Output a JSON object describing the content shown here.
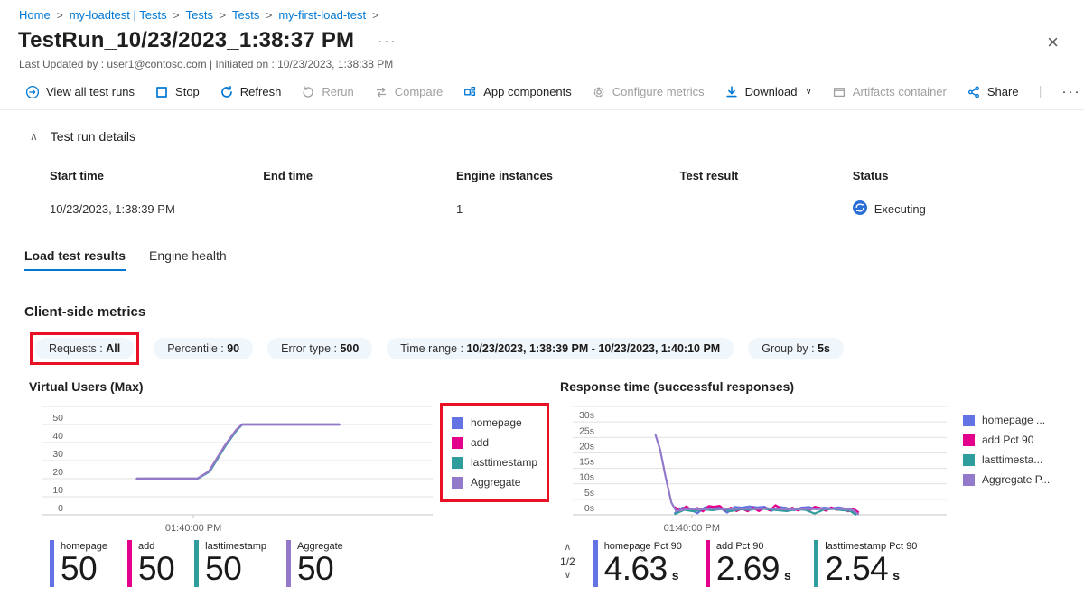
{
  "colors": {
    "accent": "#0078d4",
    "disabled": "#a19f9d",
    "highlight_red": "#e81123",
    "status_blue": "#2b6fd6",
    "series_blue": "#6373e3",
    "series_pink": "#e3008c",
    "series_teal": "#2e9d9b",
    "series_purple": "#9379c9"
  },
  "breadcrumb": {
    "separator": ">",
    "trailing_separator": true,
    "items": [
      {
        "label": "Home"
      },
      {
        "label": "my-loadtest | Tests"
      },
      {
        "label": "Tests"
      },
      {
        "label": "Tests"
      },
      {
        "label": "my-first-load-test"
      }
    ]
  },
  "header": {
    "title": "TestRun_10/23/2023_1:38:37 PM",
    "more": "···",
    "close": "×",
    "subtitle": "Last Updated by : user1@contoso.com | Initiated on : 10/23/2023, 1:38:38 PM"
  },
  "toolbar": {
    "items": [
      {
        "label": "View all test runs",
        "icon": "arrow-circle-right",
        "enabled": true
      },
      {
        "label": "Stop",
        "icon": "stop-square",
        "enabled": true
      },
      {
        "label": "Refresh",
        "icon": "refresh",
        "enabled": true
      },
      {
        "label": "Rerun",
        "icon": "rerun",
        "enabled": false
      },
      {
        "label": "Compare",
        "icon": "compare",
        "enabled": false
      },
      {
        "label": "App components",
        "icon": "app-components",
        "enabled": true
      },
      {
        "label": "Configure metrics",
        "icon": "gear",
        "enabled": false
      },
      {
        "label": "Download",
        "icon": "download",
        "enabled": true,
        "chevron": "∨"
      },
      {
        "label": "Artifacts container",
        "icon": "container",
        "enabled": false
      },
      {
        "label": "Share",
        "icon": "share",
        "enabled": true
      }
    ],
    "divider": "|",
    "more": "···"
  },
  "details": {
    "section_title": "Test run details",
    "collapse_chevron": "∧",
    "table": {
      "columns": [
        "Start time",
        "End time",
        "Engine instances",
        "Test result",
        "Status"
      ],
      "rows": [
        {
          "cells": [
            "10/23/2023, 1:38:39 PM",
            "",
            "1",
            "",
            "Executing"
          ],
          "status_icon": "sync"
        }
      ]
    }
  },
  "tabs": [
    {
      "label": "Load test results",
      "active": true
    },
    {
      "label": "Engine health",
      "active": false
    }
  ],
  "metrics": {
    "heading": "Client-side metrics",
    "filters": [
      {
        "label": "Requests",
        "value": "All",
        "highlighted": true
      },
      {
        "label": "Percentile",
        "value": "90",
        "highlighted": false
      },
      {
        "label": "Error type",
        "value": "500",
        "highlighted": false
      },
      {
        "label": "Time range",
        "value": "10/23/2023, 1:38:39 PM - 10/23/2023, 1:40:10 PM",
        "highlighted": false
      },
      {
        "label": "Group by",
        "value": "5s",
        "highlighted": false
      }
    ]
  },
  "chart_data": [
    {
      "type": "line",
      "title": "Virtual Users (Max)",
      "xlabel": "",
      "ylabel": "",
      "ylim": [
        0,
        50
      ],
      "yticks": [
        "50",
        "40",
        "30",
        "20",
        "10",
        "0"
      ],
      "xticks": [
        {
          "label": "01:40:00 PM",
          "pos": 0.39
        }
      ],
      "grid": true,
      "legend_position": "right",
      "legend_highlighted": true,
      "legend": [
        {
          "name": "homepage",
          "color": "#6373e3"
        },
        {
          "name": "add",
          "color": "#e3008c"
        },
        {
          "name": "lasttimestamp",
          "color": "#2e9d9b"
        },
        {
          "name": "Aggregate",
          "color": "#9379c9"
        }
      ],
      "series": [
        {
          "name": "homepage",
          "color": "#6373e3",
          "points": [
            [
              0.245,
              20
            ],
            [
              0.4,
              20
            ],
            [
              0.43,
              24
            ],
            [
              0.47,
              38
            ],
            [
              0.5,
              47
            ],
            [
              0.515,
              50
            ],
            [
              0.6,
              50
            ],
            [
              0.7,
              50
            ],
            [
              0.765,
              50
            ]
          ]
        },
        {
          "name": "add",
          "color": "#e3008c",
          "points": [
            [
              0.245,
              20
            ],
            [
              0.4,
              20
            ],
            [
              0.43,
              24
            ],
            [
              0.47,
              38
            ],
            [
              0.5,
              47
            ],
            [
              0.515,
              50
            ],
            [
              0.6,
              50
            ],
            [
              0.7,
              50
            ],
            [
              0.765,
              50
            ]
          ]
        },
        {
          "name": "lasttimestamp",
          "color": "#2e9d9b",
          "points": [
            [
              0.245,
              20
            ],
            [
              0.401,
              20
            ],
            [
              0.432,
              24
            ],
            [
              0.472,
              38
            ],
            [
              0.502,
              47
            ],
            [
              0.516,
              50
            ],
            [
              0.6,
              50
            ],
            [
              0.7,
              50
            ],
            [
              0.765,
              50
            ]
          ]
        },
        {
          "name": "Aggregate",
          "color": "#9379c9",
          "points": [
            [
              0.245,
              20
            ],
            [
              0.4,
              20
            ],
            [
              0.43,
              24
            ],
            [
              0.47,
              38
            ],
            [
              0.5,
              47
            ],
            [
              0.515,
              50
            ],
            [
              0.6,
              50
            ],
            [
              0.7,
              50
            ],
            [
              0.765,
              50
            ]
          ]
        }
      ]
    },
    {
      "type": "line",
      "title": "Response time (successful responses)",
      "xlabel": "",
      "ylabel": "",
      "ylim": [
        0,
        30
      ],
      "yticks": [
        "30s",
        "25s",
        "20s",
        "15s",
        "10s",
        "5s",
        "0s"
      ],
      "xticks": [
        {
          "label": "01:40:00 PM",
          "pos": 0.32
        }
      ],
      "grid": true,
      "legend_position": "right",
      "legend_highlighted": false,
      "legend": [
        {
          "name": "homepage ...",
          "color": "#6373e3"
        },
        {
          "name": "add Pct 90",
          "color": "#e3008c"
        },
        {
          "name": "lasttimesta...",
          "color": "#2e9d9b"
        },
        {
          "name": "Aggregate P...",
          "color": "#9379c9"
        }
      ],
      "series": [
        {
          "name": "homepage Pct 90",
          "color": "#6373e3",
          "points": [
            [
              0.275,
              0.6
            ],
            [
              0.295,
              2.3
            ],
            [
              0.315,
              1.9
            ],
            [
              0.335,
              0.5
            ],
            [
              0.355,
              2.4
            ],
            [
              0.375,
              2.6
            ],
            [
              0.395,
              2.4
            ],
            [
              0.415,
              0.7
            ],
            [
              0.435,
              2.5
            ],
            [
              0.455,
              2.3
            ],
            [
              0.475,
              2.7
            ],
            [
              0.495,
              2.4
            ],
            [
              0.515,
              2.6
            ],
            [
              0.535,
              1.3
            ],
            [
              0.555,
              2.5
            ],
            [
              0.575,
              2.2
            ],
            [
              0.595,
              1.5
            ],
            [
              0.615,
              2.3
            ],
            [
              0.635,
              2.5
            ],
            [
              0.655,
              1.8
            ],
            [
              0.675,
              2.3
            ],
            [
              0.695,
              2.1
            ],
            [
              0.715,
              2.4
            ],
            [
              0.735,
              1.9
            ],
            [
              0.75,
              1.6
            ],
            [
              0.762,
              0.5
            ]
          ]
        },
        {
          "name": "add Pct 90",
          "color": "#e3008c",
          "points": [
            [
              0.275,
              2.4
            ],
            [
              0.29,
              1.2
            ],
            [
              0.305,
              2.7
            ],
            [
              0.32,
              1.5
            ],
            [
              0.335,
              2.2
            ],
            [
              0.35,
              1.1
            ],
            [
              0.365,
              2.8
            ],
            [
              0.38,
              2.6
            ],
            [
              0.395,
              2.9
            ],
            [
              0.41,
              1.4
            ],
            [
              0.425,
              2.3
            ],
            [
              0.44,
              1.2
            ],
            [
              0.455,
              2.0
            ],
            [
              0.47,
              1.1
            ],
            [
              0.485,
              2.3
            ],
            [
              0.5,
              1.2
            ],
            [
              0.515,
              2.2
            ],
            [
              0.53,
              1.4
            ],
            [
              0.545,
              3.1
            ],
            [
              0.56,
              2.0
            ],
            [
              0.575,
              1.2
            ],
            [
              0.59,
              2.3
            ],
            [
              0.605,
              1.4
            ],
            [
              0.62,
              2.1
            ],
            [
              0.635,
              1.3
            ],
            [
              0.65,
              2.6
            ],
            [
              0.665,
              2.2
            ],
            [
              0.68,
              1.3
            ],
            [
              0.695,
              2.4
            ],
            [
              0.71,
              1.6
            ],
            [
              0.725,
              2.1
            ],
            [
              0.74,
              1.1
            ],
            [
              0.755,
              1.9
            ],
            [
              0.767,
              0.9
            ]
          ]
        },
        {
          "name": "lasttimestamp Pct 90",
          "color": "#2e9d9b",
          "points": [
            [
              0.275,
              0.3
            ],
            [
              0.3,
              1.6
            ],
            [
              0.325,
              1.1
            ],
            [
              0.35,
              1.8
            ],
            [
              0.375,
              1.5
            ],
            [
              0.4,
              1.9
            ],
            [
              0.425,
              1.2
            ],
            [
              0.45,
              1.8
            ],
            [
              0.475,
              1.6
            ],
            [
              0.5,
              2.0
            ],
            [
              0.525,
              1.8
            ],
            [
              0.55,
              1.5
            ],
            [
              0.575,
              1.2
            ],
            [
              0.6,
              1.8
            ],
            [
              0.625,
              1.6
            ],
            [
              0.65,
              0.4
            ],
            [
              0.675,
              1.7
            ],
            [
              0.7,
              1.9
            ],
            [
              0.725,
              1.5
            ],
            [
              0.745,
              1.3
            ],
            [
              0.76,
              0.1
            ]
          ]
        },
        {
          "name": "Aggregate Pct 90",
          "color": "#9379c9",
          "points": [
            [
              0.222,
              26
            ],
            [
              0.235,
              21
            ],
            [
              0.25,
              12
            ],
            [
              0.265,
              4
            ],
            [
              0.278,
              1.2
            ],
            [
              0.31,
              1.9
            ],
            [
              0.34,
              1.7
            ],
            [
              0.37,
              2.0
            ],
            [
              0.4,
              1.8
            ],
            [
              0.43,
              1.9
            ],
            [
              0.46,
              2.0
            ],
            [
              0.49,
              1.9
            ],
            [
              0.52,
              2.1
            ],
            [
              0.55,
              1.9
            ],
            [
              0.58,
              1.7
            ],
            [
              0.61,
              1.9
            ],
            [
              0.64,
              1.8
            ],
            [
              0.67,
              1.9
            ],
            [
              0.7,
              2.0
            ],
            [
              0.72,
              1.9
            ],
            [
              0.74,
              1.7
            ],
            [
              0.755,
              1.4
            ],
            [
              0.767,
              0.2
            ]
          ]
        }
      ]
    }
  ],
  "footers": {
    "left": {
      "items": [
        {
          "label": "homepage",
          "value": "50",
          "unit": "",
          "color": "#6373e3"
        },
        {
          "label": "add",
          "value": "50",
          "unit": "",
          "color": "#e3008c"
        },
        {
          "label": "lasttimestamp",
          "value": "50",
          "unit": "",
          "color": "#2e9d9b"
        },
        {
          "label": "Aggregate",
          "value": "50",
          "unit": "",
          "color": "#9379c9"
        }
      ]
    },
    "right": {
      "pager": {
        "up": "∧",
        "label": "1/2",
        "down": "∨"
      },
      "items": [
        {
          "label": "homepage Pct 90",
          "value": "4.63",
          "unit": "s",
          "color": "#6373e3"
        },
        {
          "label": "add Pct 90",
          "value": "2.69",
          "unit": "s",
          "color": "#e3008c"
        },
        {
          "label": "lasttimestamp Pct 90",
          "value": "2.54",
          "unit": "s",
          "color": "#2e9d9b"
        }
      ]
    }
  }
}
